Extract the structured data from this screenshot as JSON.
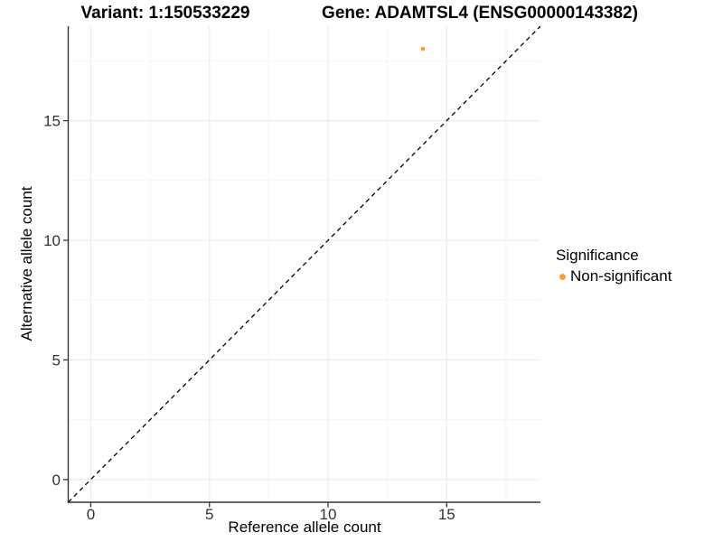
{
  "figure": {
    "titles": {
      "variant": "Variant: 1:150533229",
      "gene": "Gene: ADAMTSL4 (ENSG00000143382)"
    }
  },
  "legend": {
    "title": "Significance",
    "items": [
      {
        "label": "Non-significant",
        "color": "#FAA032"
      }
    ]
  },
  "chart_data": {
    "type": "scatter",
    "title": "Variant: 1:150533229   Gene: ADAMTSL4 (ENSG00000143382)",
    "xlabel": "Reference allele count",
    "ylabel": "Alternative allele count",
    "xlim": [
      -0.95,
      18.95
    ],
    "ylim": [
      -0.95,
      18.95
    ],
    "x_ticks": [
      0,
      5,
      10,
      15
    ],
    "y_ticks": [
      0,
      5,
      10,
      15
    ],
    "x_minor_ticks": [
      2.5,
      7.5,
      12.5,
      17.5
    ],
    "y_minor_ticks": [
      2.5,
      7.5,
      12.5,
      17.5
    ],
    "grid": true,
    "legend_position": "right",
    "identity_line": {
      "show": true,
      "style": "dashed",
      "color": "#000000"
    },
    "points": [
      {
        "x": 14,
        "y": 18,
        "significance": "Non-significant"
      }
    ],
    "significance_colors": {
      "Non-significant": "#FAA032"
    },
    "style_colors": {
      "axis_line": "#333333",
      "tick_label": "#333333",
      "grid_major": "#EBEBEB",
      "grid_minor": "#F5F5F5"
    }
  }
}
